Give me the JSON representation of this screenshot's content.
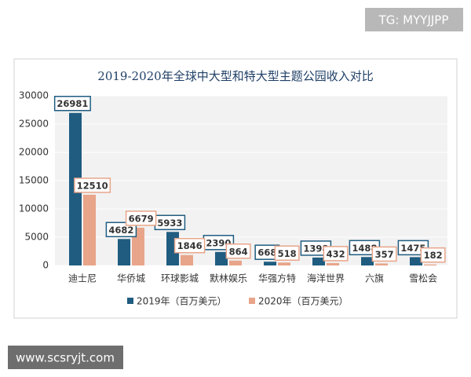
{
  "watermarks": [
    "TG: MYYJJPP",
    "www.scsryjt.com"
  ],
  "chart_data": {
    "type": "bar",
    "title": "2019-2020年全球中大型和特大型主题公园收入对比",
    "categories": [
      "迪士尼",
      "华侨城",
      "环球影城",
      "默林娱乐",
      "华强方特",
      "海洋世界",
      "六旗",
      "雪松会"
    ],
    "series": [
      {
        "name": "2019年（百万美元）",
        "color": "#1f5c80",
        "values": [
          26981,
          4682,
          5933,
          2390,
          668,
          1398,
          1488,
          1475
        ]
      },
      {
        "name": "2020年（百万美元）",
        "color": "#e8a58a",
        "values": [
          12510,
          6679,
          1846,
          864,
          518,
          432,
          357,
          182
        ]
      }
    ],
    "ylim": [
      0,
      30000
    ],
    "yticks": [
      0,
      5000,
      10000,
      15000,
      20000,
      25000,
      30000
    ],
    "grid": true
  }
}
